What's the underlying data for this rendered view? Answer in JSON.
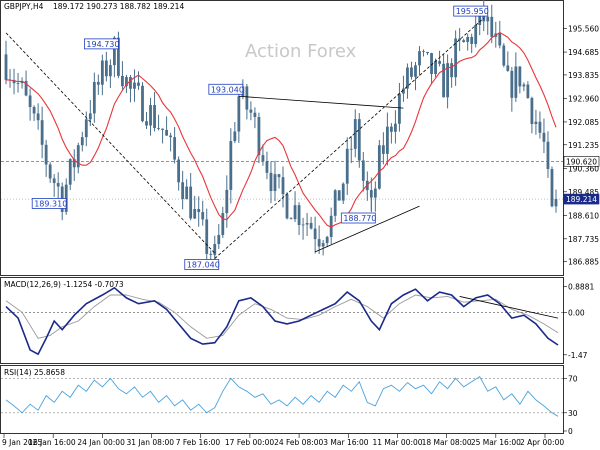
{
  "header": {
    "symbol": "GBPJPY,H4",
    "ohlc": "189.172 190.273 188.782 189.214"
  },
  "watermark": "Action Forex",
  "colors": {
    "candle": "#4a6f8c",
    "ma": "#e8363a",
    "trendline": "#000000",
    "annotation": "#1f3fbf",
    "macd": "#1a2a8a",
    "signal": "#9a9a9a",
    "rsi": "#4aa3df",
    "last_price_bg": "#1a2a8a"
  },
  "chart_data": [
    {
      "type": "candlestick",
      "title": "GBPJPY,H4",
      "ylim": [
        186.5,
        196.4
      ],
      "y_ticks": [
        "195.560",
        "194.685",
        "193.835",
        "192.960",
        "192.085",
        "191.235",
        "190.360",
        "189.485",
        "188.610",
        "187.735",
        "186.885"
      ],
      "x_ticks": [
        "9 Jan 2025",
        "16 Jan 16:00",
        "24 Jan 00:00",
        "31 Jan 08:00",
        "7 Feb 16:00",
        "17 Feb 00:00",
        "24 Feb 08:00",
        "3 Mar 16:00",
        "11 Mar 00:00",
        "18 Mar 08:00",
        "25 Mar 16:00",
        "2 Apr 00:00"
      ],
      "price_path": [
        [
          0,
          194.3
        ],
        [
          4,
          193.2
        ],
        [
          8,
          191.6
        ],
        [
          11,
          190.2
        ],
        [
          14,
          189.31
        ],
        [
          17,
          190.6
        ],
        [
          20,
          192.4
        ],
        [
          24,
          193.8
        ],
        [
          27,
          194.73
        ],
        [
          31,
          193.2
        ],
        [
          35,
          192.6
        ],
        [
          39,
          191.8
        ],
        [
          43,
          190.2
        ],
        [
          47,
          188.6
        ],
        [
          50,
          187.5
        ],
        [
          52,
          187.04
        ],
        [
          54,
          188.4
        ],
        [
          56,
          191.2
        ],
        [
          58,
          193.04
        ],
        [
          61,
          192.4
        ],
        [
          64,
          191.0
        ],
        [
          67,
          189.6
        ],
        [
          70,
          189.1
        ],
        [
          74,
          188.6
        ],
        [
          78,
          187.9
        ],
        [
          81,
          188.4
        ],
        [
          84,
          189.9
        ],
        [
          87,
          191.8
        ],
        [
          89,
          189.9
        ],
        [
          91,
          188.77
        ],
        [
          93,
          190.6
        ],
        [
          96,
          192.1
        ],
        [
          99,
          193.4
        ],
        [
          103,
          194.3
        ],
        [
          106,
          194.0
        ],
        [
          109,
          193.5
        ],
        [
          112,
          194.6
        ],
        [
          115,
          195.1
        ],
        [
          119,
          195.95
        ],
        [
          122,
          194.9
        ],
        [
          125,
          193.4
        ],
        [
          128,
          193.8
        ],
        [
          131,
          192.6
        ],
        [
          134,
          191.2
        ],
        [
          135.5,
          189.0
        ],
        [
          136.5,
          188.1
        ],
        [
          137.5,
          189.214
        ]
      ],
      "last_price": "189.214",
      "series": [
        {
          "name": "",
          "role": "moving-average-red"
        }
      ],
      "levels": [
        {
          "label": "190.620",
          "value": 190.62,
          "style": "dashed"
        },
        {
          "label": "189.214",
          "value": 189.214,
          "style": "dotted"
        }
      ],
      "annotations": [
        {
          "label": "194.730",
          "value": 194.73,
          "bar": 27
        },
        {
          "label": "193.040",
          "value": 193.04,
          "bar": 58
        },
        {
          "label": "189.310",
          "value": 189.31,
          "bar": 14
        },
        {
          "label": "188.770",
          "value": 188.77,
          "bar": 91
        },
        {
          "label": "187.040",
          "value": 187.04,
          "bar": 52
        },
        {
          "label": "195.950",
          "value": 195.95,
          "bar": 119
        }
      ],
      "trendlines": [
        {
          "from": [
            0,
            195.4
          ],
          "to": [
            52,
            187.2
          ],
          "style": "dashed"
        },
        {
          "from": [
            52,
            187.0
          ],
          "to": [
            119,
            195.95
          ],
          "style": "dashed"
        },
        {
          "from": [
            58,
            193.04
          ],
          "to": [
            99,
            192.6
          ],
          "style": "solid"
        },
        {
          "from": [
            77,
            187.25
          ],
          "to": [
            103,
            188.95
          ],
          "style": "solid"
        }
      ]
    },
    {
      "type": "line",
      "title": "MACD(12,26,9) -1.1254 -0.7073",
      "ylim": [
        -1.65,
        1.05
      ],
      "y_ticks": [
        "0.8881",
        "0.00",
        "-1.47"
      ],
      "macd_path": [
        [
          0,
          0.2
        ],
        [
          3,
          -0.2
        ],
        [
          6,
          -1.3
        ],
        [
          8,
          -1.45
        ],
        [
          10,
          -0.9
        ],
        [
          12,
          -0.3
        ],
        [
          14,
          -0.6
        ],
        [
          17,
          -0.1
        ],
        [
          20,
          0.3
        ],
        [
          24,
          0.6
        ],
        [
          27,
          0.85
        ],
        [
          30,
          0.5
        ],
        [
          33,
          0.3
        ],
        [
          37,
          0.4
        ],
        [
          40,
          0.1
        ],
        [
          43,
          -0.4
        ],
        [
          46,
          -0.9
        ],
        [
          49,
          -1.1
        ],
        [
          52,
          -1.05
        ],
        [
          55,
          -0.5
        ],
        [
          58,
          0.4
        ],
        [
          61,
          0.5
        ],
        [
          64,
          0.2
        ],
        [
          67,
          -0.3
        ],
        [
          70,
          -0.4
        ],
        [
          73,
          -0.3
        ],
        [
          76,
          -0.1
        ],
        [
          79,
          0.1
        ],
        [
          82,
          0.3
        ],
        [
          85,
          0.7
        ],
        [
          88,
          0.4
        ],
        [
          91,
          -0.3
        ],
        [
          93,
          -0.6
        ],
        [
          96,
          0.3
        ],
        [
          99,
          0.6
        ],
        [
          102,
          0.8
        ],
        [
          105,
          0.4
        ],
        [
          108,
          0.7
        ],
        [
          111,
          0.6
        ],
        [
          114,
          0.2
        ],
        [
          117,
          0.5
        ],
        [
          120,
          0.6
        ],
        [
          123,
          0.3
        ],
        [
          126,
          -0.2
        ],
        [
          129,
          -0.1
        ],
        [
          132,
          -0.4
        ],
        [
          135,
          -0.9
        ],
        [
          137.5,
          -1.13
        ]
      ],
      "signal_path": [
        [
          0,
          0.4
        ],
        [
          4,
          0.0
        ],
        [
          8,
          -0.9
        ],
        [
          11,
          -0.8
        ],
        [
          14,
          -0.5
        ],
        [
          18,
          -0.3
        ],
        [
          22,
          0.2
        ],
        [
          26,
          0.6
        ],
        [
          30,
          0.6
        ],
        [
          34,
          0.45
        ],
        [
          38,
          0.35
        ],
        [
          42,
          0.0
        ],
        [
          46,
          -0.5
        ],
        [
          50,
          -0.9
        ],
        [
          54,
          -0.8
        ],
        [
          58,
          -0.1
        ],
        [
          62,
          0.3
        ],
        [
          66,
          0.1
        ],
        [
          70,
          -0.2
        ],
        [
          74,
          -0.25
        ],
        [
          78,
          -0.1
        ],
        [
          82,
          0.2
        ],
        [
          86,
          0.45
        ],
        [
          90,
          0.2
        ],
        [
          94,
          -0.2
        ],
        [
          98,
          0.3
        ],
        [
          102,
          0.6
        ],
        [
          106,
          0.5
        ],
        [
          110,
          0.55
        ],
        [
          114,
          0.35
        ],
        [
          118,
          0.4
        ],
        [
          122,
          0.45
        ],
        [
          126,
          0.1
        ],
        [
          130,
          -0.1
        ],
        [
          134,
          -0.4
        ],
        [
          137.5,
          -0.71
        ]
      ],
      "trendlines": [
        {
          "from": [
            113,
            0.55
          ],
          "to": [
            137.5,
            -0.2
          ],
          "style": "solid"
        }
      ]
    },
    {
      "type": "line",
      "title": "RSI(14) 25.8658",
      "ylim": [
        10,
        82
      ],
      "y_ticks": [
        "70",
        "30",
        "0"
      ],
      "rsi_path": [
        [
          0,
          45
        ],
        [
          2,
          38
        ],
        [
          4,
          30
        ],
        [
          6,
          40
        ],
        [
          8,
          33
        ],
        [
          10,
          50
        ],
        [
          12,
          42
        ],
        [
          14,
          55
        ],
        [
          16,
          48
        ],
        [
          18,
          62
        ],
        [
          20,
          55
        ],
        [
          22,
          68
        ],
        [
          24,
          60
        ],
        [
          26,
          70
        ],
        [
          28,
          58
        ],
        [
          30,
          52
        ],
        [
          32,
          60
        ],
        [
          34,
          48
        ],
        [
          36,
          55
        ],
        [
          38,
          42
        ],
        [
          40,
          50
        ],
        [
          42,
          38
        ],
        [
          44,
          45
        ],
        [
          46,
          33
        ],
        [
          48,
          40
        ],
        [
          50,
          30
        ],
        [
          52,
          36
        ],
        [
          54,
          55
        ],
        [
          56,
          70
        ],
        [
          58,
          60
        ],
        [
          60,
          55
        ],
        [
          62,
          48
        ],
        [
          64,
          52
        ],
        [
          66,
          40
        ],
        [
          68,
          45
        ],
        [
          70,
          38
        ],
        [
          72,
          48
        ],
        [
          74,
          40
        ],
        [
          76,
          50
        ],
        [
          78,
          42
        ],
        [
          80,
          55
        ],
        [
          82,
          48
        ],
        [
          84,
          62
        ],
        [
          86,
          55
        ],
        [
          88,
          66
        ],
        [
          90,
          42
        ],
        [
          92,
          38
        ],
        [
          94,
          58
        ],
        [
          96,
          62
        ],
        [
          98,
          55
        ],
        [
          100,
          65
        ],
        [
          102,
          58
        ],
        [
          104,
          62
        ],
        [
          106,
          52
        ],
        [
          108,
          66
        ],
        [
          110,
          58
        ],
        [
          112,
          70
        ],
        [
          114,
          60
        ],
        [
          116,
          66
        ],
        [
          118,
          72
        ],
        [
          120,
          55
        ],
        [
          122,
          60
        ],
        [
          124,
          45
        ],
        [
          126,
          52
        ],
        [
          128,
          40
        ],
        [
          130,
          55
        ],
        [
          132,
          45
        ],
        [
          134,
          38
        ],
        [
          136,
          30
        ],
        [
          137.5,
          25.9
        ]
      ]
    }
  ]
}
